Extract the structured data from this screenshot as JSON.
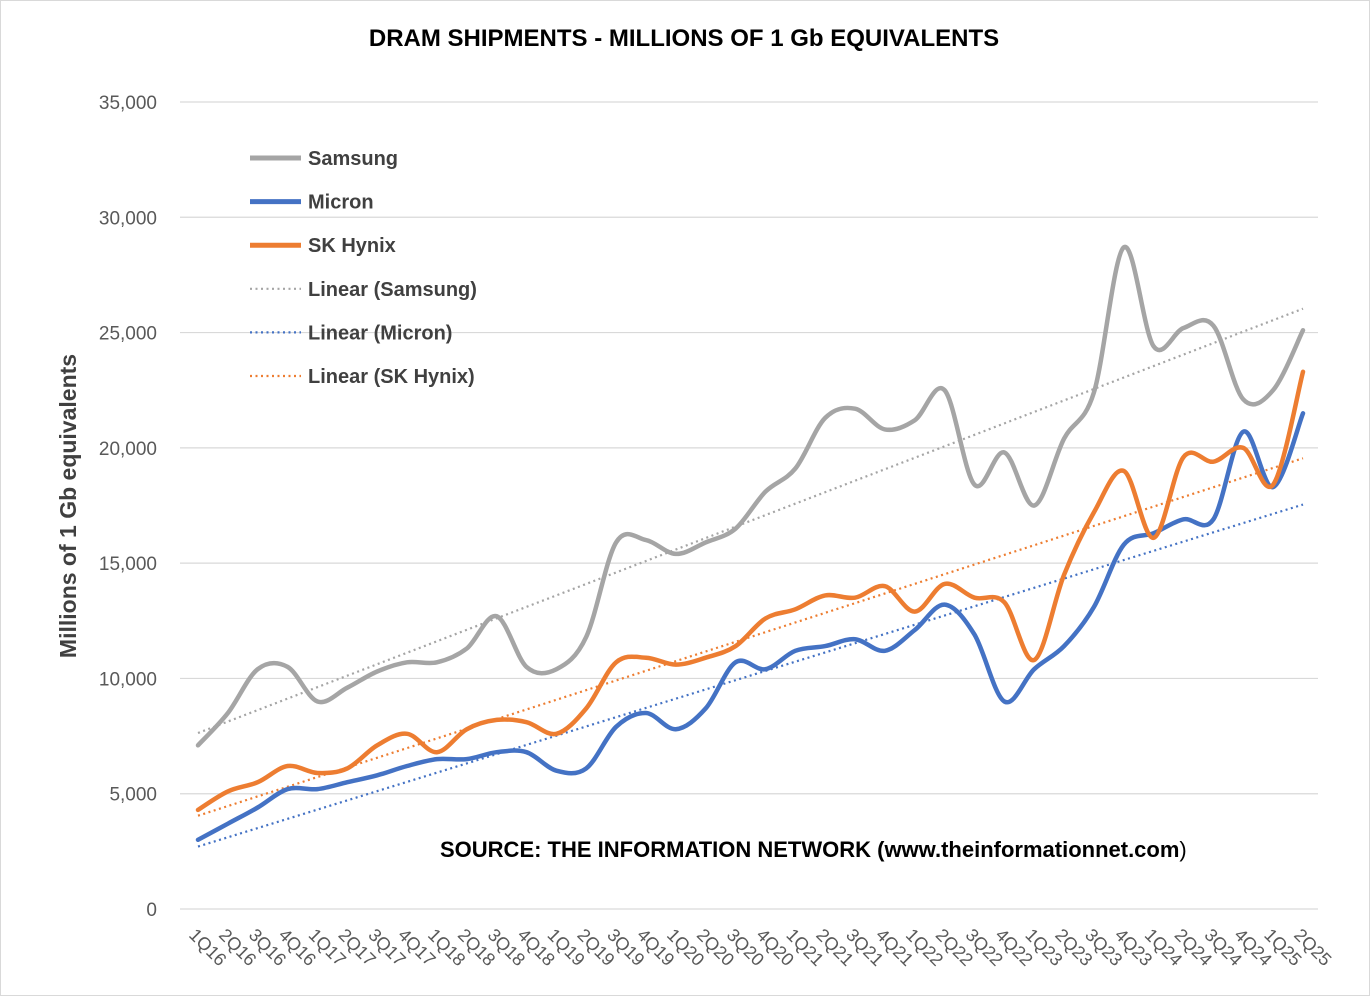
{
  "chart_data": {
    "type": "line",
    "title": "DRAM SHIPMENTS - MILLIONS OF 1 Gb EQUIVALENTS",
    "xlabel": "",
    "ylabel": "Millions of 1 Gb equivalents",
    "ylim": [
      0,
      35000
    ],
    "yticks": [
      0,
      5000,
      10000,
      15000,
      20000,
      25000,
      30000,
      35000
    ],
    "ytick_labels": [
      "0",
      "5,000",
      "10,000",
      "15,000",
      "20,000",
      "25,000",
      "30,000",
      "35,000"
    ],
    "grid": true,
    "legend_position": "top-left",
    "categories": [
      "1Q16",
      "2Q16",
      "3Q16",
      "4Q16",
      "1Q17",
      "2Q17",
      "3Q17",
      "4Q17",
      "1Q18",
      "2Q18",
      "3Q18",
      "4Q18",
      "1Q19",
      "2Q19",
      "3Q19",
      "4Q19",
      "1Q20",
      "2Q20",
      "3Q20",
      "4Q20",
      "1Q21",
      "2Q21",
      "3Q21",
      "4Q21",
      "1Q22",
      "2Q22",
      "3Q22",
      "4Q22",
      "1Q23",
      "2Q23",
      "3Q23",
      "4Q23",
      "1Q24",
      "2Q24",
      "3Q24",
      "4Q24",
      "1Q25",
      "2Q25"
    ],
    "series": [
      {
        "name": "Samsung",
        "color": "#a5a5a5",
        "style": "solid",
        "values": [
          7100,
          8500,
          10400,
          10500,
          9000,
          9600,
          10300,
          10700,
          10700,
          11300,
          12700,
          10500,
          10400,
          11800,
          15900,
          16000,
          15400,
          15900,
          16500,
          18100,
          19100,
          21300,
          21700,
          20800,
          21200,
          22500,
          18400,
          19800,
          17500,
          20400,
          22400,
          28700,
          24400,
          25200,
          25300,
          22100,
          22500,
          25100
        ]
      },
      {
        "name": "Micron",
        "color": "#4472c4",
        "style": "solid",
        "values": [
          3000,
          3700,
          4400,
          5200,
          5200,
          5500,
          5800,
          6200,
          6500,
          6500,
          6800,
          6800,
          6000,
          6100,
          7900,
          8500,
          7800,
          8700,
          10700,
          10400,
          11200,
          11400,
          11700,
          11200,
          12100,
          13200,
          11900,
          9000,
          10400,
          11400,
          13100,
          15800,
          16300,
          16900,
          16900,
          20700,
          18300,
          21500
        ]
      },
      {
        "name": "SK Hynix",
        "color": "#ed7d31",
        "style": "solid",
        "values": [
          4300,
          5100,
          5500,
          6200,
          5900,
          6100,
          7100,
          7600,
          6800,
          7800,
          8200,
          8100,
          7600,
          8700,
          10700,
          10900,
          10600,
          10900,
          11400,
          12600,
          13000,
          13600,
          13500,
          14000,
          12900,
          14100,
          13500,
          13300,
          10800,
          14500,
          17200,
          19000,
          16100,
          19600,
          19400,
          20000,
          18400,
          23300
        ]
      },
      {
        "name": "Linear (Samsung)",
        "color": "#a5a5a5",
        "style": "dotted",
        "trend_of": "Samsung"
      },
      {
        "name": "Linear (Micron)",
        "color": "#4472c4",
        "style": "dotted",
        "trend_of": "Micron"
      },
      {
        "name": "Linear (SK Hynix)",
        "color": "#ed7d31",
        "style": "dotted",
        "trend_of": "SK Hynix"
      }
    ],
    "annotation": {
      "bold": "SOURCE: THE INFORMATION NETWORK (www.theinformationnet.com",
      "plain": ")"
    }
  }
}
